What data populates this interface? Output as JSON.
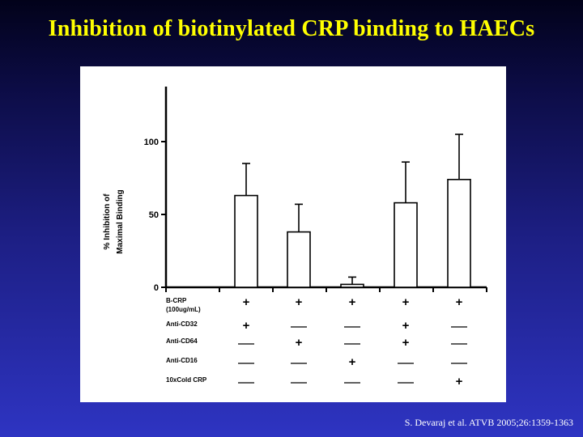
{
  "slide": {
    "title": "Inhibition of biotinylated CRP binding to HAECs",
    "citation": "S. Devaraj et al. ATVB 2005;26:1359-1363"
  },
  "chart_data": {
    "type": "bar",
    "ylabel_lines": [
      "% Inhibition of",
      "Maximal Binding"
    ],
    "ylim": [
      0,
      140
    ],
    "yticks": [
      0,
      50,
      100
    ],
    "values": [
      63,
      38,
      2,
      58,
      74
    ],
    "error_upper": [
      85,
      57,
      7,
      86,
      105
    ],
    "grid": false,
    "legend": "none",
    "bar_color": "#ffffff",
    "treatment_table": {
      "rows": [
        {
          "label": [
            "B-CRP",
            "(100ug/mL)"
          ],
          "signs": [
            "+",
            "+",
            "+",
            "+",
            "+"
          ]
        },
        {
          "label": [
            "Anti-CD32"
          ],
          "signs": [
            "+",
            "—",
            "—",
            "+",
            "—"
          ]
        },
        {
          "label": [
            "Anti-CD64"
          ],
          "signs": [
            "—",
            "+",
            "—",
            "+",
            "—"
          ]
        },
        {
          "label": [
            "Anti-CD16"
          ],
          "signs": [
            "—",
            "—",
            "+",
            "—",
            "—"
          ]
        },
        {
          "label": [
            "10xCold CRP"
          ],
          "signs": [
            "—",
            "—",
            "—",
            "—",
            "+"
          ]
        }
      ]
    }
  }
}
